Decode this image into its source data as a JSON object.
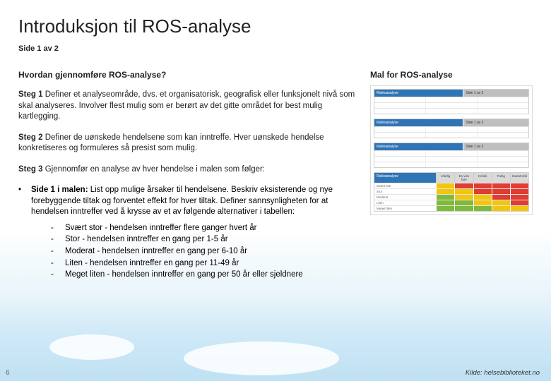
{
  "title": "Introduksjon til ROS-analyse",
  "pager": "Side 1 av 2",
  "left": {
    "question": "Hvordan gjennomføre ROS-analyse?",
    "steps": [
      {
        "num": "Steg 1",
        "text": "Definer et analyseområde, dvs. et organisatorisk, geografisk eller funksjonelt nivå som skal analyseres. Involver flest mulig som er berørt av det gitte området for best mulig kartlegging."
      },
      {
        "num": "Steg 2",
        "text": "Definer de uønskede hendelsene som kan inntreffe. Hver uønskede hendelse konkretiseres og formuleres så presist som mulig."
      },
      {
        "num": "Steg 3",
        "text": "Gjennomfør en analyse av hver hendelse i malen som følger:"
      }
    ],
    "bullet": {
      "mark": "•",
      "lead": "Side 1 i malen:",
      "text": " List opp mulige årsaker til hendelsene. Beskriv eksisterende og nye forebyggende tiltak og forventet effekt for hver tiltak. Definer sannsynligheten for at hendelsen inntreffer ved å krysse av et av følgende alternativer i tabellen:"
    },
    "subs": [
      "Svært stor - hendelsen inntreffer flere ganger hvert år",
      "Stor - hendelsen inntreffer en gang per 1-5 år",
      "Moderat - hendelsen inntreffer en gang per 6-10 år",
      "Liten - hendelsen inntreffer en gang per 11-49 år",
      "Meget liten - hendelsen inntreffer en gang per 50 år eller sjeldnere"
    ]
  },
  "right": {
    "title": "Mal for ROS-analyse",
    "blueHeader": "Risikoanalyse",
    "greyHeader": "Side 1 av 2",
    "riskRows": [
      "Svært stor",
      "Stor",
      "Moderat",
      "Liten",
      "Meget liten"
    ],
    "riskCols": [
      "Ufarlig",
      "En viss fare",
      "Kritisk",
      "Farlig",
      "Katastrofal"
    ],
    "matrix": [
      [
        "y",
        "r",
        "r",
        "r",
        "r"
      ],
      [
        "y",
        "y",
        "r",
        "r",
        "r"
      ],
      [
        "g",
        "y",
        "y",
        "r",
        "r"
      ],
      [
        "g",
        "g",
        "y",
        "y",
        "r"
      ],
      [
        "g",
        "g",
        "g",
        "y",
        "y"
      ]
    ],
    "colors": {
      "g": "#7fba3c",
      "y": "#f2c50f",
      "r": "#e03c31",
      "blue": "#2f74b5"
    }
  },
  "slidenum": "6",
  "source": "Kilde: helsebiblioteket.no"
}
